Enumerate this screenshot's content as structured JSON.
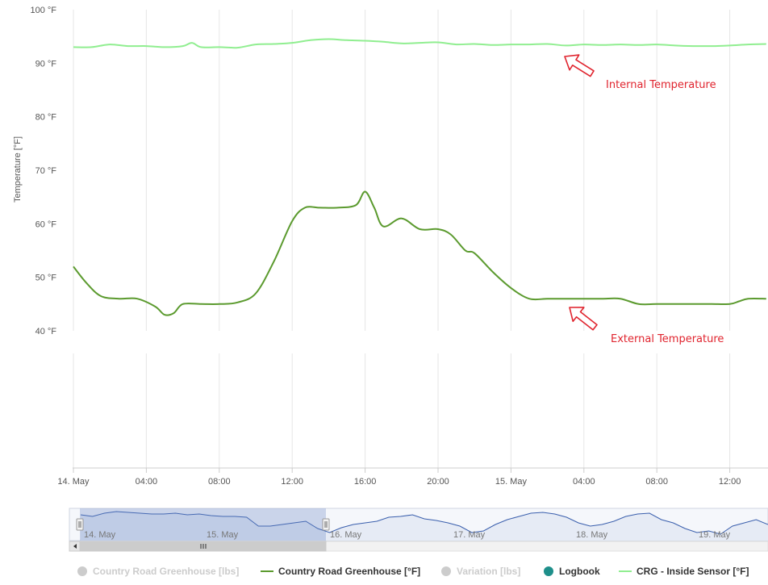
{
  "chart_data": {
    "type": "line",
    "ylabel": "Temperature [°F]",
    "ylim": [
      40,
      100
    ],
    "y_ticks": [
      "100 °F",
      "90 °F",
      "80 °F",
      "70 °F",
      "60 °F",
      "50 °F",
      "40 °F"
    ],
    "x_range_hours": [
      0,
      38
    ],
    "x_ticks": [
      {
        "label": "14. May",
        "hour": 0
      },
      {
        "label": "04:00",
        "hour": 4
      },
      {
        "label": "08:00",
        "hour": 8
      },
      {
        "label": "12:00",
        "hour": 12
      },
      {
        "label": "16:00",
        "hour": 16
      },
      {
        "label": "20:00",
        "hour": 20
      },
      {
        "label": "15. May",
        "hour": 24
      },
      {
        "label": "04:00",
        "hour": 28
      },
      {
        "label": "08:00",
        "hour": 32
      },
      {
        "label": "12:00",
        "hour": 36
      }
    ],
    "grid": true,
    "legend_position": "bottom",
    "series": [
      {
        "name": "Country Road Greenhouse [°F]",
        "color": "#5b9a2e",
        "x": [
          0,
          0.7,
          1.5,
          2.5,
          3.5,
          4.5,
          5,
          5.5,
          6,
          7,
          8,
          9,
          10,
          11,
          12,
          12.7,
          13.5,
          14.5,
          15.5,
          16,
          16.5,
          17,
          18,
          19,
          20,
          20.7,
          21.5,
          22,
          23,
          24,
          25,
          26,
          27,
          28,
          29,
          30,
          31,
          32,
          33,
          34,
          35,
          36,
          36.5,
          37,
          38
        ],
        "y": [
          52,
          49,
          46.5,
          46,
          46,
          44.5,
          43,
          43.3,
          45,
          45,
          45,
          45.3,
          47,
          53,
          60.5,
          63,
          63,
          63,
          63.5,
          66,
          63,
          59.5,
          61,
          59,
          59,
          58,
          55,
          54.5,
          51,
          48,
          46,
          46,
          46,
          46,
          46,
          46,
          45,
          45,
          45,
          45,
          45,
          45,
          45.5,
          46,
          46
        ]
      },
      {
        "name": "CRG - Inside Sensor [°F]",
        "color": "#90ee90",
        "x": [
          0,
          1,
          2,
          3,
          4,
          5,
          6,
          6.5,
          7,
          8,
          9,
          10,
          11,
          12,
          13,
          14,
          15,
          16,
          17,
          18,
          19,
          20,
          21,
          22,
          23,
          24,
          25,
          26,
          27,
          28,
          29,
          30,
          31,
          32,
          33,
          34,
          35,
          36,
          37,
          38
        ],
        "y": [
          93,
          93,
          93.5,
          93.2,
          93.2,
          93,
          93.2,
          93.8,
          93,
          93,
          92.9,
          93.5,
          93.6,
          93.8,
          94.3,
          94.5,
          94.3,
          94.2,
          94.0,
          93.7,
          93.8,
          93.9,
          93.5,
          93.6,
          93.4,
          93.5,
          93.5,
          93.6,
          93.3,
          93.5,
          93.4,
          93.5,
          93.4,
          93.5,
          93.3,
          93.2,
          93.2,
          93.3,
          93.5,
          93.6
        ]
      }
    ],
    "annotations": [
      {
        "text": "Internal Temperature",
        "target_series": "CRG - Inside Sensor [°F]"
      },
      {
        "text": "External Temperature",
        "target_series": "Country Road Greenhouse [°F]"
      }
    ]
  },
  "navigator": {
    "labels": [
      "14. May",
      "15. May",
      "16. May",
      "17. May",
      "18. May",
      "19. May"
    ],
    "selected_range": [
      "14. May",
      "16. May"
    ]
  },
  "legend": [
    {
      "label": "Country Road Greenhouse [lbs]",
      "kind": "dot",
      "color": "#cccccc",
      "visible": false
    },
    {
      "label": "Country Road Greenhouse [°F]",
      "kind": "line",
      "color": "#5b9a2e",
      "visible": true
    },
    {
      "label": "Variation [lbs]",
      "kind": "dot",
      "color": "#cccccc",
      "visible": false
    },
    {
      "label": "Logbook",
      "kind": "dot",
      "color": "#1e8f8a",
      "visible": true
    },
    {
      "label": "CRG - Inside Sensor [°F]",
      "kind": "line",
      "color": "#90ee90",
      "visible": true
    }
  ]
}
